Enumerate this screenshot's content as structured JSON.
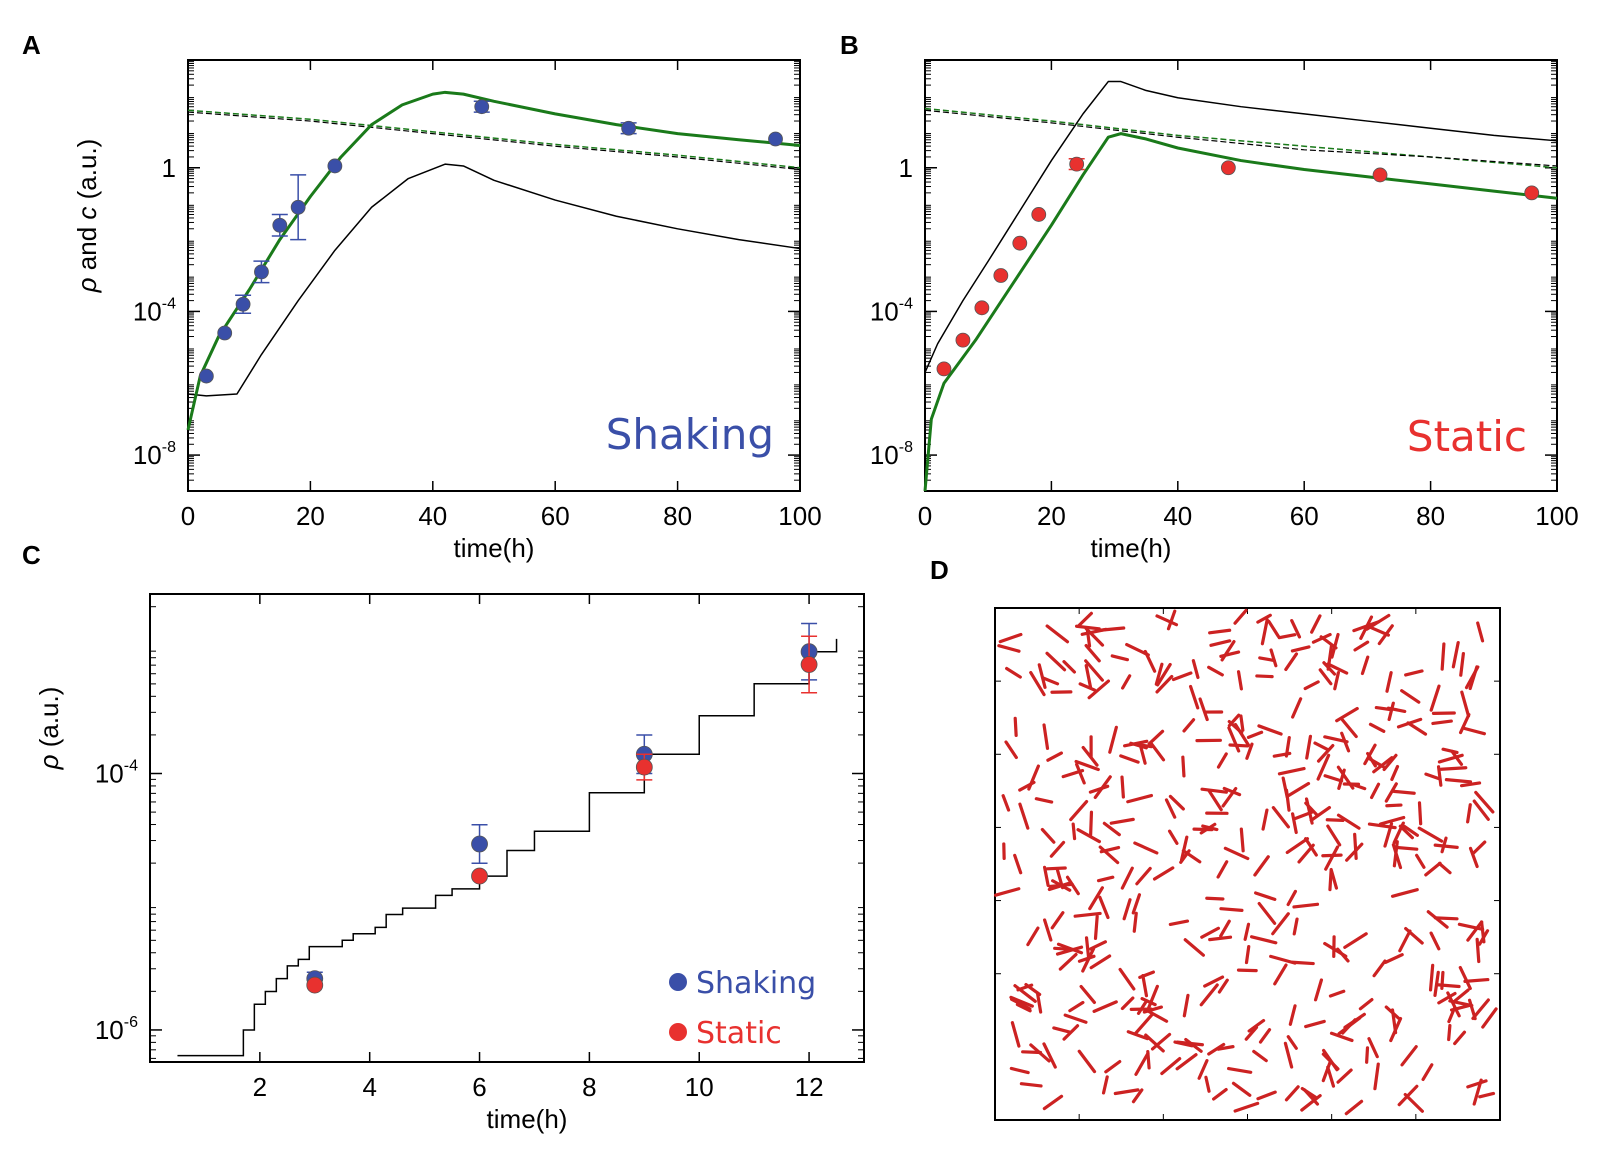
{
  "colors": {
    "shaking": "#3a4fa8",
    "static": "#e8312f",
    "model": "#1a7a1a",
    "black": "#000000",
    "cells": "#cc2222"
  },
  "panels": {
    "A": "A",
    "B": "B",
    "C": "C",
    "D": "D"
  },
  "chart_data": [
    {
      "id": "A",
      "type": "line",
      "title": "",
      "xlabel": "time(h)",
      "ylabel_sym": "ρ",
      "ylabel_and": "and",
      "ylabel_c": "c",
      "ylabel_units": "(a.u.)",
      "xlim": [
        0,
        100
      ],
      "ylim_log10": [
        -9,
        3
      ],
      "xticks": [
        "0",
        "20",
        "40",
        "60",
        "80",
        "100"
      ],
      "yticks": [
        {
          "base": "1",
          "exp": ""
        },
        {
          "base": "10",
          "exp": "-4"
        },
        {
          "base": "10",
          "exp": "-8"
        }
      ],
      "annotation": "Shaking",
      "scatter": {
        "name": "Shaking data",
        "x": [
          3,
          6,
          9,
          12,
          15,
          18,
          24,
          48,
          72,
          96
        ],
        "log10y": [
          -5.8,
          -4.6,
          -3.8,
          -2.9,
          -1.6,
          -1.1,
          0.05,
          1.7,
          1.1,
          0.8
        ],
        "err_log10": [
          0,
          0,
          0.25,
          0.3,
          0.3,
          0.9,
          0,
          0.15,
          0.15,
          0
        ]
      },
      "series": [
        {
          "name": "green model",
          "x": [
            0,
            2,
            5,
            10,
            15,
            20,
            25,
            30,
            35,
            40,
            42,
            45,
            50,
            60,
            70,
            80,
            90,
            100
          ],
          "log10y": [
            -7.3,
            -5.8,
            -4.7,
            -3.4,
            -2.0,
            -0.8,
            0.3,
            1.2,
            1.75,
            2.05,
            2.1,
            2.05,
            1.85,
            1.5,
            1.2,
            0.95,
            0.78,
            0.62
          ]
        },
        {
          "name": "black model",
          "x": [
            0,
            3,
            8,
            12,
            18,
            24,
            30,
            36,
            42,
            45,
            50,
            60,
            70,
            80,
            90,
            100
          ],
          "log10y": [
            -6.3,
            -6.35,
            -6.3,
            -5.2,
            -3.7,
            -2.3,
            -1.1,
            -0.3,
            0.1,
            0.05,
            -0.35,
            -0.9,
            -1.35,
            -1.7,
            -2.0,
            -2.25
          ]
        },
        {
          "name": "green dashed",
          "x": [
            0,
            20,
            40,
            60,
            80,
            100
          ],
          "log10y": [
            1.6,
            1.35,
            1.0,
            0.65,
            0.35,
            0.0
          ]
        },
        {
          "name": "black dashed",
          "x": [
            0,
            20,
            40,
            60,
            80,
            100
          ],
          "log10y": [
            1.55,
            1.3,
            0.95,
            0.6,
            0.3,
            -0.05
          ]
        }
      ]
    },
    {
      "id": "B",
      "type": "line",
      "title": "",
      "xlabel": "time(h)",
      "xlim": [
        0,
        100
      ],
      "ylim_log10": [
        -9,
        3
      ],
      "xticks": [
        "0",
        "20",
        "40",
        "60",
        "80",
        "100"
      ],
      "yticks": [
        {
          "base": "1",
          "exp": ""
        },
        {
          "base": "10",
          "exp": "-4"
        },
        {
          "base": "10",
          "exp": "-8"
        }
      ],
      "annotation": "Static",
      "scatter": {
        "name": "Static data",
        "x": [
          3,
          6,
          9,
          12,
          15,
          18,
          24,
          48,
          72,
          96
        ],
        "log10y": [
          -5.6,
          -4.8,
          -3.9,
          -3.0,
          -2.1,
          -1.3,
          0.1,
          0.0,
          -0.2,
          -0.7
        ],
        "err_log10": [
          0,
          0,
          0,
          0,
          0,
          0,
          0.15,
          0,
          0,
          0
        ]
      },
      "series": [
        {
          "name": "green model",
          "x": [
            0,
            1,
            3,
            8,
            14,
            20,
            25,
            29,
            31,
            35,
            40,
            50,
            60,
            70,
            80,
            90,
            100
          ],
          "log10y": [
            -9,
            -7.0,
            -6.0,
            -4.8,
            -3.2,
            -1.6,
            -0.2,
            0.85,
            0.95,
            0.8,
            0.55,
            0.2,
            -0.05,
            -0.25,
            -0.45,
            -0.65,
            -0.85
          ]
        },
        {
          "name": "black model",
          "x": [
            0,
            2,
            6,
            10,
            15,
            20,
            25,
            29,
            31,
            35,
            40,
            50,
            60,
            70,
            80,
            90,
            100
          ],
          "log10y": [
            -5.7,
            -4.9,
            -3.7,
            -2.6,
            -1.2,
            0.2,
            1.5,
            2.4,
            2.4,
            2.15,
            1.95,
            1.7,
            1.5,
            1.3,
            1.1,
            0.9,
            0.75
          ]
        },
        {
          "name": "green dashed",
          "x": [
            0,
            20,
            40,
            60,
            80,
            100
          ],
          "log10y": [
            1.65,
            1.3,
            0.9,
            0.6,
            0.3,
            0.0
          ]
        },
        {
          "name": "black dashed",
          "x": [
            0,
            20,
            40,
            60,
            80,
            100
          ],
          "log10y": [
            1.6,
            1.25,
            0.85,
            0.5,
            0.3,
            0.05
          ]
        }
      ]
    },
    {
      "id": "C",
      "type": "scatter",
      "title": "",
      "xlabel": "time(h)",
      "ylabel_sym": "ρ",
      "ylabel_units": "(a.u.)",
      "xlim": [
        0,
        13
      ],
      "ylim_log10": [
        -6.25,
        -2.6
      ],
      "xticks": [
        "2",
        "4",
        "6",
        "8",
        "10",
        "12"
      ],
      "yticks": [
        {
          "base": "10",
          "exp": "-4"
        },
        {
          "base": "10",
          "exp": "-6"
        }
      ],
      "legend": [
        {
          "label": "Shaking",
          "series": "Shaking"
        },
        {
          "label": "Static",
          "series": "Static"
        }
      ],
      "series": [
        {
          "name": "Shaking",
          "x": [
            3,
            6,
            9,
            12
          ],
          "log10y": [
            -5.6,
            -4.55,
            -3.85,
            -3.05
          ],
          "err_log10": [
            0.05,
            0.15,
            0.15,
            0.22
          ]
        },
        {
          "name": "Static",
          "x": [
            3,
            6,
            9,
            12
          ],
          "log10y": [
            -5.65,
            -4.8,
            -3.95,
            -3.15
          ],
          "err_log10": [
            0,
            0,
            0.1,
            0.22
          ]
        }
      ],
      "model_step": {
        "x": [
          0.5,
          1.6,
          1.7,
          1.9,
          2.1,
          2.3,
          2.5,
          2.7,
          2.9,
          3.3,
          3.5,
          3.7,
          4.1,
          4.3,
          4.6,
          5.2,
          5.5,
          6.0,
          6.5,
          7.0,
          8.0,
          9.0,
          10.0,
          11.0,
          12.0,
          12.5
        ],
        "log10y": [
          -6.2,
          -6.2,
          -6.0,
          -5.8,
          -5.7,
          -5.6,
          -5.5,
          -5.45,
          -5.35,
          -5.35,
          -5.3,
          -5.25,
          -5.2,
          -5.1,
          -5.05,
          -4.95,
          -4.9,
          -4.8,
          -4.6,
          -4.45,
          -4.15,
          -3.85,
          -3.55,
          -3.3,
          -3.05,
          -2.95
        ]
      }
    },
    {
      "id": "D",
      "type": "other",
      "title": "",
      "description_free": true,
      "cell_count": 420
    }
  ]
}
